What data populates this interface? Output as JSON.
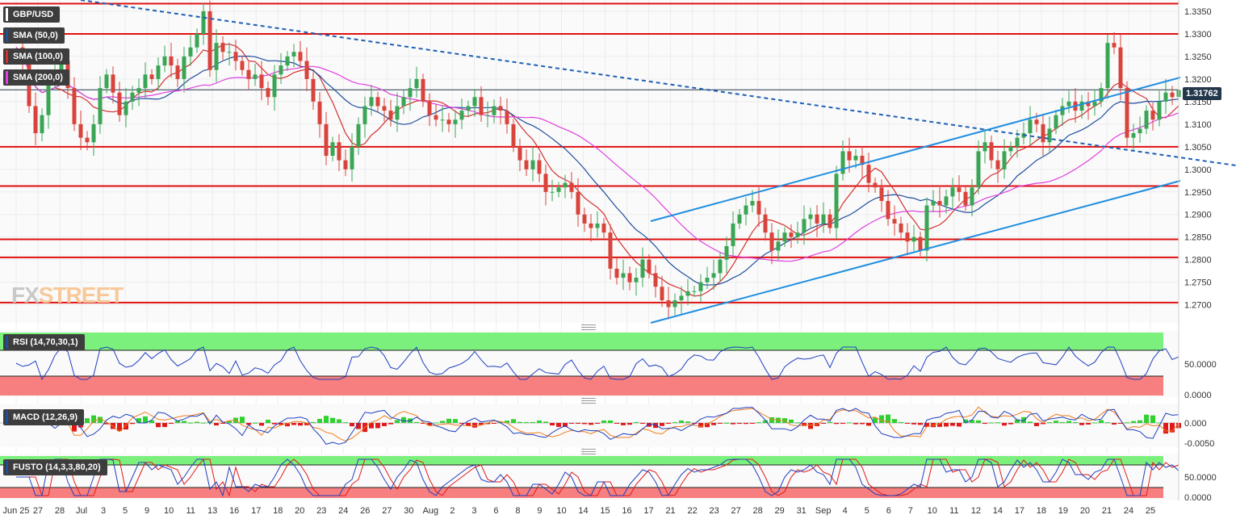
{
  "symbol": "GBP/USD",
  "last_price": "1.31762",
  "watermark": {
    "part1": "FX",
    "part2": "STREET"
  },
  "indicators": {
    "sma50": {
      "label": "SMA (50,0)",
      "color": "#1f4e9c"
    },
    "sma100": {
      "label": "SMA (100,0)",
      "color": "#d32f2f"
    },
    "sma200": {
      "label": "SMA (200,0)",
      "color": "#e040e0"
    },
    "rsi": {
      "label": "RSI (14,70,30,1)"
    },
    "macd": {
      "label": "MACD (12,26,9)"
    },
    "fusto": {
      "label": "FUSTO (14,3,3,80,20)"
    }
  },
  "colors": {
    "up_candle": "#3aa655",
    "down_candle": "#d8443c",
    "horizontal_level": "#e01010",
    "trendline": "#1f8ee0",
    "overbought_zone": "#7cf07c",
    "oversold_zone": "#f77f7f"
  },
  "chart_data": [
    {
      "type": "candlestick",
      "title": "GBP/USD",
      "x_ticks": [
        "Jun 25",
        "27",
        "28",
        "Jul",
        "3",
        "5",
        "9",
        "10",
        "11",
        "13",
        "16",
        "17",
        "18",
        "20",
        "23",
        "24",
        "26",
        "27",
        "30",
        "Aug",
        "2",
        "3",
        "6",
        "8",
        "9",
        "10",
        "14",
        "15",
        "16",
        "17",
        "21",
        "22",
        "23",
        "27",
        "28",
        "29",
        "31",
        "Sep",
        "4",
        "5",
        "6",
        "7",
        "10",
        "11",
        "12",
        "14",
        "17",
        "18",
        "19",
        "20",
        "21",
        "24",
        "25"
      ],
      "y_ticks": [
        "1.3350",
        "1.3300",
        "1.3250",
        "1.3200",
        "1.3150",
        "1.3100",
        "1.3050",
        "1.3000",
        "1.2950",
        "1.2900",
        "1.2850",
        "1.2800",
        "1.2750",
        "1.2700"
      ],
      "ylim": [
        1.266,
        1.3375
      ],
      "horizontal_levels": [
        1.3367,
        1.33,
        1.305,
        1.2963,
        1.2845,
        1.2805,
        1.2705
      ],
      "current_price": 1.31762,
      "close_path": [
        [
          0,
          1.327
        ],
        [
          8,
          1.324
        ],
        [
          16,
          1.314
        ],
        [
          24,
          1.308
        ],
        [
          32,
          1.312
        ],
        [
          40,
          1.32
        ],
        [
          48,
          1.3215
        ],
        [
          56,
          1.324
        ],
        [
          64,
          1.318
        ],
        [
          72,
          1.31
        ],
        [
          80,
          1.307
        ],
        [
          88,
          1.306
        ],
        [
          96,
          1.31
        ],
        [
          104,
          1.318
        ],
        [
          112,
          1.321
        ],
        [
          120,
          1.317
        ],
        [
          128,
          1.312
        ],
        [
          136,
          1.315
        ],
        [
          144,
          1.317
        ],
        [
          152,
          1.318
        ],
        [
          160,
          1.321
        ],
        [
          168,
          1.32
        ],
        [
          176,
          1.323
        ],
        [
          184,
          1.325
        ],
        [
          192,
          1.323
        ],
        [
          200,
          1.32
        ],
        [
          208,
          1.325
        ],
        [
          216,
          1.327
        ],
        [
          224,
          1.33
        ],
        [
          232,
          1.335
        ],
        [
          240,
          1.322
        ],
        [
          248,
          1.328
        ],
        [
          256,
          1.326
        ],
        [
          264,
          1.326
        ],
        [
          272,
          1.324
        ],
        [
          280,
          1.322
        ],
        [
          288,
          1.32
        ],
        [
          296,
          1.321
        ],
        [
          304,
          1.318
        ],
        [
          312,
          1.316
        ],
        [
          320,
          1.321
        ],
        [
          328,
          1.323
        ],
        [
          336,
          1.325
        ],
        [
          344,
          1.326
        ],
        [
          352,
          1.324
        ],
        [
          360,
          1.32
        ],
        [
          368,
          1.315
        ],
        [
          376,
          1.31
        ],
        [
          384,
          1.303
        ],
        [
          392,
          1.306
        ],
        [
          400,
          1.302
        ],
        [
          408,
          1.3
        ],
        [
          416,
          1.305
        ],
        [
          424,
          1.31
        ],
        [
          432,
          1.314
        ],
        [
          440,
          1.316
        ],
        [
          448,
          1.314
        ],
        [
          456,
          1.313
        ],
        [
          464,
          1.311
        ],
        [
          472,
          1.314
        ],
        [
          480,
          1.316
        ],
        [
          488,
          1.318
        ],
        [
          496,
          1.32
        ],
        [
          504,
          1.315
        ],
        [
          512,
          1.312
        ],
        [
          520,
          1.311
        ],
        [
          528,
          1.311
        ],
        [
          536,
          1.31
        ],
        [
          544,
          1.311
        ],
        [
          552,
          1.313
        ],
        [
          560,
          1.314
        ],
        [
          568,
          1.316
        ],
        [
          576,
          1.312
        ],
        [
          584,
          1.312
        ],
        [
          592,
          1.314
        ],
        [
          600,
          1.313
        ],
        [
          608,
          1.31
        ],
        [
          616,
          1.305
        ],
        [
          624,
          1.302
        ],
        [
          632,
          1.3
        ],
        [
          640,
          1.302
        ],
        [
          648,
          1.299
        ],
        [
          656,
          1.295
        ],
        [
          664,
          1.295
        ],
        [
          672,
          1.296
        ],
        [
          680,
          1.297
        ],
        [
          688,
          1.295
        ],
        [
          696,
          1.29
        ],
        [
          704,
          1.288
        ],
        [
          712,
          1.287
        ],
        [
          720,
          1.288
        ],
        [
          728,
          1.286
        ],
        [
          736,
          1.278
        ],
        [
          744,
          1.276
        ],
        [
          752,
          1.277
        ],
        [
          760,
          1.275
        ],
        [
          768,
          1.276
        ],
        [
          776,
          1.28
        ],
        [
          784,
          1.277
        ],
        [
          792,
          1.274
        ],
        [
          800,
          1.271
        ],
        [
          808,
          1.2695
        ],
        [
          816,
          1.271
        ],
        [
          824,
          1.272
        ],
        [
          832,
          1.273
        ],
        [
          840,
          1.273
        ],
        [
          848,
          1.275
        ],
        [
          856,
          1.276
        ],
        [
          864,
          1.277
        ],
        [
          872,
          1.28
        ],
        [
          880,
          1.283
        ],
        [
          888,
          1.288
        ],
        [
          896,
          1.29
        ],
        [
          904,
          1.292
        ],
        [
          912,
          1.293
        ],
        [
          920,
          1.29
        ],
        [
          928,
          1.286
        ],
        [
          936,
          1.282
        ],
        [
          944,
          1.284
        ],
        [
          952,
          1.286
        ],
        [
          960,
          1.285
        ],
        [
          968,
          1.286
        ],
        [
          976,
          1.289
        ],
        [
          984,
          1.29
        ],
        [
          992,
          1.288
        ],
        [
          1000,
          1.29
        ],
        [
          1008,
          1.287
        ],
        [
          1016,
          1.299
        ],
        [
          1024,
          1.304
        ],
        [
          1032,
          1.302
        ],
        [
          1040,
          1.303
        ],
        [
          1048,
          1.301
        ],
        [
          1056,
          1.297
        ],
        [
          1064,
          1.296
        ],
        [
          1072,
          1.293
        ],
        [
          1080,
          1.289
        ],
        [
          1088,
          1.288
        ],
        [
          1096,
          1.286
        ],
        [
          1104,
          1.284
        ],
        [
          1112,
          1.285
        ],
        [
          1120,
          1.282
        ],
        [
          1128,
          1.292
        ],
        [
          1136,
          1.293
        ],
        [
          1144,
          1.292
        ],
        [
          1152,
          1.294
        ],
        [
          1160,
          1.296
        ],
        [
          1168,
          1.295
        ],
        [
          1176,
          1.292
        ],
        [
          1184,
          1.296
        ],
        [
          1192,
          1.304
        ],
        [
          1200,
          1.306
        ],
        [
          1208,
          1.302
        ],
        [
          1216,
          1.3
        ],
        [
          1224,
          1.304
        ],
        [
          1232,
          1.305
        ],
        [
          1240,
          1.307
        ],
        [
          1248,
          1.308
        ],
        [
          1256,
          1.311
        ],
        [
          1264,
          1.31
        ],
        [
          1272,
          1.306
        ],
        [
          1280,
          1.309
        ],
        [
          1288,
          1.312
        ],
        [
          1296,
          1.314
        ],
        [
          1304,
          1.315
        ],
        [
          1312,
          1.313
        ],
        [
          1320,
          1.315
        ],
        [
          1328,
          1.314
        ],
        [
          1336,
          1.315
        ],
        [
          1344,
          1.318
        ],
        [
          1352,
          1.328
        ],
        [
          1360,
          1.327
        ],
        [
          1368,
          1.318
        ],
        [
          1376,
          1.307
        ],
        [
          1384,
          1.308
        ],
        [
          1392,
          1.309
        ],
        [
          1400,
          1.313
        ],
        [
          1408,
          1.311
        ],
        [
          1416,
          1.315
        ],
        [
          1424,
          1.317
        ],
        [
          1432,
          1.316
        ],
        [
          1440,
          1.3176
        ]
      ]
    },
    {
      "type": "line",
      "title": "RSI (14,70,30,1)",
      "y_ticks": [
        "50.0000",
        "0.0000"
      ]
    },
    {
      "type": "bar",
      "title": "MACD (12,26,9)",
      "y_ticks": [
        "0.000",
        "-0.0050"
      ]
    },
    {
      "type": "line",
      "title": "FUSTO (14,3,3,80,20)",
      "y_ticks": [
        "50.0000",
        "0.0000"
      ]
    }
  ]
}
